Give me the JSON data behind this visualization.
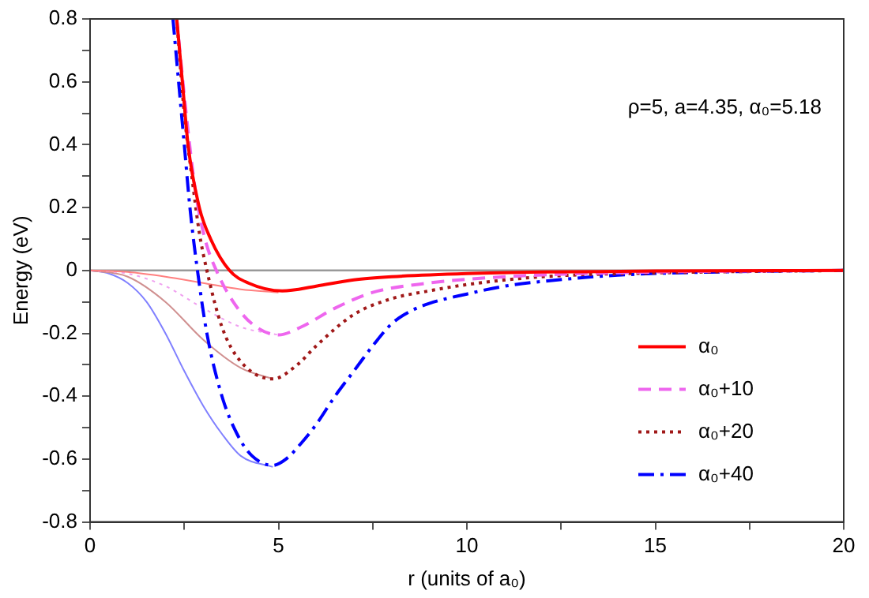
{
  "chart_data": {
    "type": "line",
    "xlabel": "r (units of a₀)",
    "ylabel": "Energy (eV)",
    "annotations": [
      "ρ=5, a=4.35, α₀=5.18"
    ],
    "xlim": [
      0,
      20
    ],
    "ylim": [
      -0.8,
      0.8
    ],
    "xticks": [
      0,
      {
        "value": 2.5,
        "label": null
      },
      5,
      {
        "value": 7.5,
        "label": null
      },
      10,
      {
        "value": 12.5,
        "label": null
      },
      15,
      {
        "value": 17.5,
        "label": null
      },
      20
    ],
    "yticks": [
      -0.8,
      {
        "value": -0.7,
        "label": null
      },
      -0.6,
      {
        "value": -0.5,
        "label": null
      },
      -0.4,
      {
        "value": -0.3,
        "label": null
      },
      -0.2,
      {
        "value": -0.1,
        "label": null
      },
      0,
      {
        "value": 0.1,
        "label": null
      },
      0.2,
      {
        "value": 0.3,
        "label": null
      },
      0.4,
      {
        "value": 0.5,
        "label": null
      },
      0.6,
      {
        "value": 0.7,
        "label": null
      },
      0.8
    ],
    "grid": false,
    "legend": "bottom right",
    "marker": "none",
    "ref_lines": [
      {
        "axis": "y",
        "value": 0,
        "color": "#999999"
      }
    ],
    "series": [
      {
        "color": "#ff8080",
        "line_style": "solid",
        "x": [
          0,
          1,
          2,
          3,
          4,
          5
        ],
        "values": [
          0,
          -0.005,
          -0.02,
          -0.04,
          -0.06,
          -0.07
        ]
      },
      {
        "color": "#f0a0f0",
        "line_style": "dotted",
        "x": [
          0,
          1,
          2,
          3,
          4,
          5
        ],
        "values": [
          0,
          -0.01,
          -0.05,
          -0.12,
          -0.18,
          -0.205
        ]
      },
      {
        "color": "#d09090",
        "line_style": "solid",
        "x": [
          0,
          1,
          2,
          3,
          4,
          4.85
        ],
        "values": [
          0,
          -0.02,
          -0.1,
          -0.22,
          -0.31,
          -0.345
        ]
      },
      {
        "color": "#8080ff",
        "line_style": "solid",
        "x": [
          0,
          0.5,
          1,
          1.5,
          2,
          2.5,
          3,
          3.5,
          4,
          4.85
        ],
        "values": [
          0,
          -0.01,
          -0.04,
          -0.1,
          -0.2,
          -0.32,
          -0.43,
          -0.52,
          -0.59,
          -0.625
        ]
      },
      {
        "name": "α₀",
        "color": "#ff0000",
        "line_style": "solid",
        "x": [
          2.3,
          2.45,
          2.6,
          2.9,
          3.2,
          3.7,
          4.2,
          5.1,
          6,
          7,
          8,
          10,
          12,
          15,
          20
        ],
        "values": [
          0.8,
          0.6,
          0.4,
          0.2,
          0.1,
          0,
          -0.04,
          -0.065,
          -0.05,
          -0.03,
          -0.02,
          -0.01,
          -0.005,
          -0.002,
          0
        ]
      },
      {
        "name": "α₀+10",
        "color": "#ee66ee",
        "line_style": "dashed",
        "x": [
          2.3,
          2.55,
          2.8,
          3.05,
          3.35,
          3.8,
          4.3,
          5,
          5.6,
          6.5,
          7.5,
          9,
          11,
          15,
          20
        ],
        "values": [
          0.8,
          0.5,
          0.25,
          0.1,
          0,
          -0.1,
          -0.17,
          -0.205,
          -0.18,
          -0.12,
          -0.07,
          -0.04,
          -0.02,
          -0.005,
          0
        ]
      },
      {
        "name": "α₀+20",
        "color": "#a01818",
        "line_style": "dotted",
        "x": [
          2.3,
          2.5,
          2.7,
          2.9,
          3.1,
          3.5,
          4,
          4.85,
          5.5,
          6,
          7,
          8,
          9,
          10,
          12,
          15,
          20
        ],
        "values": [
          0.8,
          0.5,
          0.3,
          0.12,
          0,
          -0.18,
          -0.29,
          -0.345,
          -0.3,
          -0.24,
          -0.14,
          -0.09,
          -0.065,
          -0.045,
          -0.02,
          -0.008,
          0
        ]
      },
      {
        "name": "α₀+40",
        "color": "#0000ff",
        "line_style": "dashdot",
        "x": [
          2.2,
          2.35,
          2.5,
          2.65,
          2.85,
          3.1,
          3.5,
          3.9,
          4.3,
          4.85,
          5.2,
          5.6,
          6,
          6.5,
          7,
          7.5,
          8,
          8.5,
          9,
          10,
          11,
          12,
          14,
          17,
          20
        ],
        "values": [
          0.8,
          0.6,
          0.4,
          0.2,
          0,
          -0.2,
          -0.4,
          -0.52,
          -0.59,
          -0.62,
          -0.6,
          -0.55,
          -0.49,
          -0.4,
          -0.32,
          -0.24,
          -0.17,
          -0.13,
          -0.105,
          -0.075,
          -0.05,
          -0.035,
          -0.015,
          -0.004,
          0
        ]
      }
    ]
  }
}
